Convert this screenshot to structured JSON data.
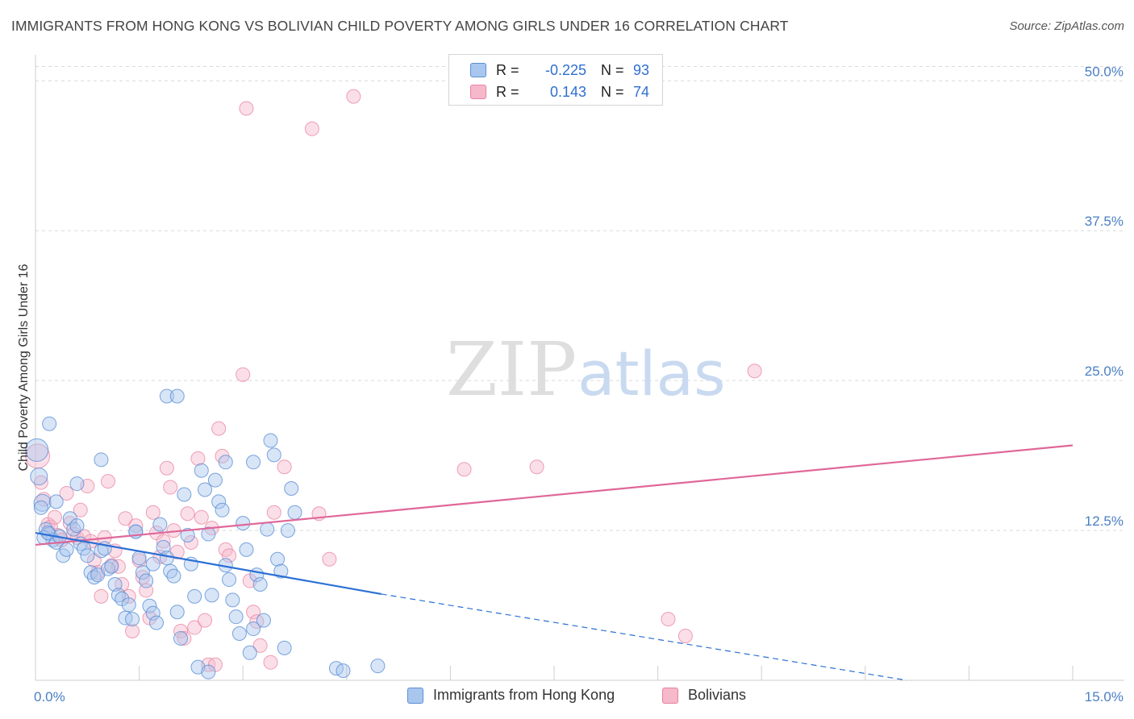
{
  "title": "IMMIGRANTS FROM HONG KONG VS BOLIVIAN CHILD POVERTY AMONG GIRLS UNDER 16 CORRELATION CHART",
  "source": "Source: ZipAtlas.com",
  "watermark": {
    "zip": "ZIP",
    "atlas": "atlas"
  },
  "legend": {
    "series1": {
      "r_label": "R =",
      "r_value": "-0.225",
      "n_label": "N =",
      "n_value": "93"
    },
    "series2": {
      "r_label": "R =",
      "r_value": "0.143",
      "n_label": "N =",
      "n_value": "74"
    }
  },
  "bottom_legend": {
    "series1": "Immigrants from Hong Kong",
    "series2": "Bolivians"
  },
  "colors": {
    "blue_fill": "#a9c6ee",
    "blue_stroke": "#5a8fd6",
    "blue_line": "#2b6fd4",
    "pink_fill": "#f6b8cb",
    "pink_stroke": "#e8819f",
    "pink_line": "#e0679a",
    "grid": "#d9d9d9",
    "axis_text": "#4a7fc4"
  },
  "chart_data": {
    "type": "scatter",
    "title": "IMMIGRANTS FROM HONG KONG VS BOLIVIAN CHILD POVERTY AMONG GIRLS UNDER 16 CORRELATION CHART",
    "xlabel": "",
    "ylabel": "Child Poverty Among Girls Under 16",
    "xlim": [
      0,
      15
    ],
    "ylim": [
      0,
      51.5
    ],
    "x_tick_labels": [
      {
        "value": 0,
        "label": "0.0%"
      },
      {
        "value": 15,
        "label": "15.0%"
      }
    ],
    "y_tick_labels": [
      {
        "value": 12.5,
        "label": "12.5%"
      },
      {
        "value": 25,
        "label": "25.0%"
      },
      {
        "value": 37.5,
        "label": "37.5%"
      },
      {
        "value": 50,
        "label": "50.0%"
      }
    ],
    "x_minor_ticks": [
      1.5,
      3.0,
      4.5,
      6.0,
      7.5,
      9.0,
      10.5,
      12.0,
      13.5,
      15.0
    ],
    "grid": true,
    "series": [
      {
        "name": "Immigrants from Hong Kong",
        "r": -0.225,
        "n": 93,
        "trend": {
          "x_start": 0,
          "y_start": 12.3,
          "x_solid_end": 5.0,
          "y_solid_end": 7.2,
          "x_dash_end": 12.6,
          "y_dash_end": 0
        },
        "points": [
          [
            0.02,
            19.2
          ],
          [
            0.05,
            17.0
          ],
          [
            0.1,
            14.8
          ],
          [
            0.15,
            12.6
          ],
          [
            0.2,
            12.2
          ],
          [
            0.25,
            11.7
          ],
          [
            0.3,
            11.5
          ],
          [
            0.35,
            12.0
          ],
          [
            0.4,
            10.4
          ],
          [
            0.45,
            10.9
          ],
          [
            0.5,
            13.5
          ],
          [
            0.55,
            12.6
          ],
          [
            0.6,
            12.9
          ],
          [
            0.65,
            11.4
          ],
          [
            0.7,
            11.0
          ],
          [
            0.75,
            10.4
          ],
          [
            0.8,
            9.0
          ],
          [
            0.85,
            8.6
          ],
          [
            0.9,
            8.8
          ],
          [
            0.95,
            10.8
          ],
          [
            1.0,
            11.0
          ],
          [
            1.05,
            9.3
          ],
          [
            1.1,
            9.5
          ],
          [
            1.15,
            8.0
          ],
          [
            1.2,
            7.1
          ],
          [
            1.25,
            6.8
          ],
          [
            1.3,
            5.2
          ],
          [
            1.35,
            6.3
          ],
          [
            1.4,
            5.1
          ],
          [
            1.45,
            12.4
          ],
          [
            1.5,
            10.2
          ],
          [
            1.55,
            9.0
          ],
          [
            1.6,
            8.3
          ],
          [
            1.65,
            6.2
          ],
          [
            1.7,
            5.6
          ],
          [
            1.75,
            4.8
          ],
          [
            1.8,
            13.0
          ],
          [
            1.85,
            11.1
          ],
          [
            1.9,
            10.2
          ],
          [
            1.95,
            9.1
          ],
          [
            2.0,
            8.7
          ],
          [
            2.05,
            5.7
          ],
          [
            2.1,
            3.5
          ],
          [
            2.15,
            15.5
          ],
          [
            2.2,
            12.1
          ],
          [
            2.25,
            9.7
          ],
          [
            2.3,
            7.0
          ],
          [
            2.35,
            1.1
          ],
          [
            2.4,
            17.5
          ],
          [
            2.45,
            15.9
          ],
          [
            2.5,
            12.2
          ],
          [
            2.55,
            7.1
          ],
          [
            2.6,
            16.7
          ],
          [
            2.65,
            14.9
          ],
          [
            2.7,
            14.2
          ],
          [
            2.75,
            9.6
          ],
          [
            2.8,
            8.4
          ],
          [
            2.85,
            6.7
          ],
          [
            2.9,
            5.3
          ],
          [
            2.95,
            3.9
          ],
          [
            3.0,
            13.1
          ],
          [
            3.05,
            10.9
          ],
          [
            3.1,
            2.3
          ],
          [
            3.15,
            4.3
          ],
          [
            3.2,
            8.8
          ],
          [
            3.25,
            8.0
          ],
          [
            3.3,
            5.0
          ],
          [
            3.35,
            12.6
          ],
          [
            3.4,
            20.0
          ],
          [
            3.45,
            18.8
          ],
          [
            3.5,
            10.1
          ],
          [
            3.55,
            9.1
          ],
          [
            3.6,
            2.7
          ],
          [
            3.65,
            12.5
          ],
          [
            3.7,
            16.0
          ],
          [
            3.75,
            14.0
          ],
          [
            4.35,
            1.0
          ],
          [
            4.45,
            0.8
          ],
          [
            4.95,
            1.2
          ],
          [
            0.2,
            21.4
          ],
          [
            0.3,
            14.9
          ],
          [
            1.9,
            23.7
          ],
          [
            2.05,
            23.7
          ],
          [
            2.75,
            18.2
          ],
          [
            3.15,
            18.2
          ],
          [
            0.95,
            18.4
          ],
          [
            0.6,
            16.4
          ],
          [
            1.45,
            12.4
          ],
          [
            1.7,
            9.7
          ],
          [
            2.5,
            0.7
          ],
          [
            0.08,
            14.4
          ],
          [
            0.12,
            11.9
          ],
          [
            0.18,
            12.3
          ]
        ]
      },
      {
        "name": "Bolivians",
        "r": 0.143,
        "n": 74,
        "trend": {
          "x_start": 0,
          "y_start": 11.3,
          "x_end": 15,
          "y_end": 19.6
        },
        "points": [
          [
            0.03,
            18.7
          ],
          [
            0.08,
            16.5
          ],
          [
            0.12,
            15.1
          ],
          [
            0.18,
            13.0
          ],
          [
            0.22,
            12.8
          ],
          [
            0.28,
            13.6
          ],
          [
            0.32,
            12.1
          ],
          [
            0.38,
            11.7
          ],
          [
            0.45,
            15.6
          ],
          [
            0.5,
            13.1
          ],
          [
            0.55,
            12.2
          ],
          [
            0.6,
            11.9
          ],
          [
            0.65,
            14.2
          ],
          [
            0.7,
            12.0
          ],
          [
            0.75,
            16.2
          ],
          [
            0.8,
            11.6
          ],
          [
            0.85,
            10.0
          ],
          [
            0.9,
            9.0
          ],
          [
            0.95,
            7.0
          ],
          [
            1.0,
            11.9
          ],
          [
            1.05,
            16.6
          ],
          [
            1.1,
            9.6
          ],
          [
            1.15,
            10.8
          ],
          [
            1.2,
            9.5
          ],
          [
            1.25,
            8.0
          ],
          [
            1.3,
            13.5
          ],
          [
            1.35,
            7.0
          ],
          [
            1.4,
            4.1
          ],
          [
            1.45,
            12.9
          ],
          [
            1.5,
            10.0
          ],
          [
            1.55,
            8.6
          ],
          [
            1.6,
            7.5
          ],
          [
            1.65,
            5.2
          ],
          [
            1.7,
            14.0
          ],
          [
            1.75,
            12.3
          ],
          [
            1.8,
            10.3
          ],
          [
            1.85,
            11.6
          ],
          [
            1.9,
            17.7
          ],
          [
            1.95,
            16.1
          ],
          [
            2.0,
            12.5
          ],
          [
            2.05,
            10.7
          ],
          [
            2.1,
            4.1
          ],
          [
            2.15,
            3.5
          ],
          [
            2.2,
            13.9
          ],
          [
            2.25,
            11.5
          ],
          [
            2.3,
            4.4
          ],
          [
            2.35,
            18.5
          ],
          [
            2.4,
            13.6
          ],
          [
            2.45,
            5.0
          ],
          [
            2.5,
            1.3
          ],
          [
            2.55,
            12.7
          ],
          [
            2.6,
            1.3
          ],
          [
            2.65,
            21.0
          ],
          [
            2.7,
            18.7
          ],
          [
            2.75,
            10.9
          ],
          [
            2.8,
            10.4
          ],
          [
            3.0,
            25.5
          ],
          [
            3.1,
            8.3
          ],
          [
            3.15,
            5.7
          ],
          [
            3.2,
            4.9
          ],
          [
            3.25,
            2.9
          ],
          [
            3.4,
            1.5
          ],
          [
            3.45,
            14.0
          ],
          [
            3.6,
            17.8
          ],
          [
            4.1,
            13.9
          ],
          [
            4.25,
            10.1
          ],
          [
            3.05,
            47.7
          ],
          [
            4.0,
            46.0
          ],
          [
            4.6,
            48.7
          ],
          [
            6.2,
            17.6
          ],
          [
            7.25,
            17.8
          ],
          [
            9.15,
            5.1
          ],
          [
            9.4,
            3.7
          ],
          [
            10.4,
            25.8
          ]
        ]
      }
    ]
  }
}
